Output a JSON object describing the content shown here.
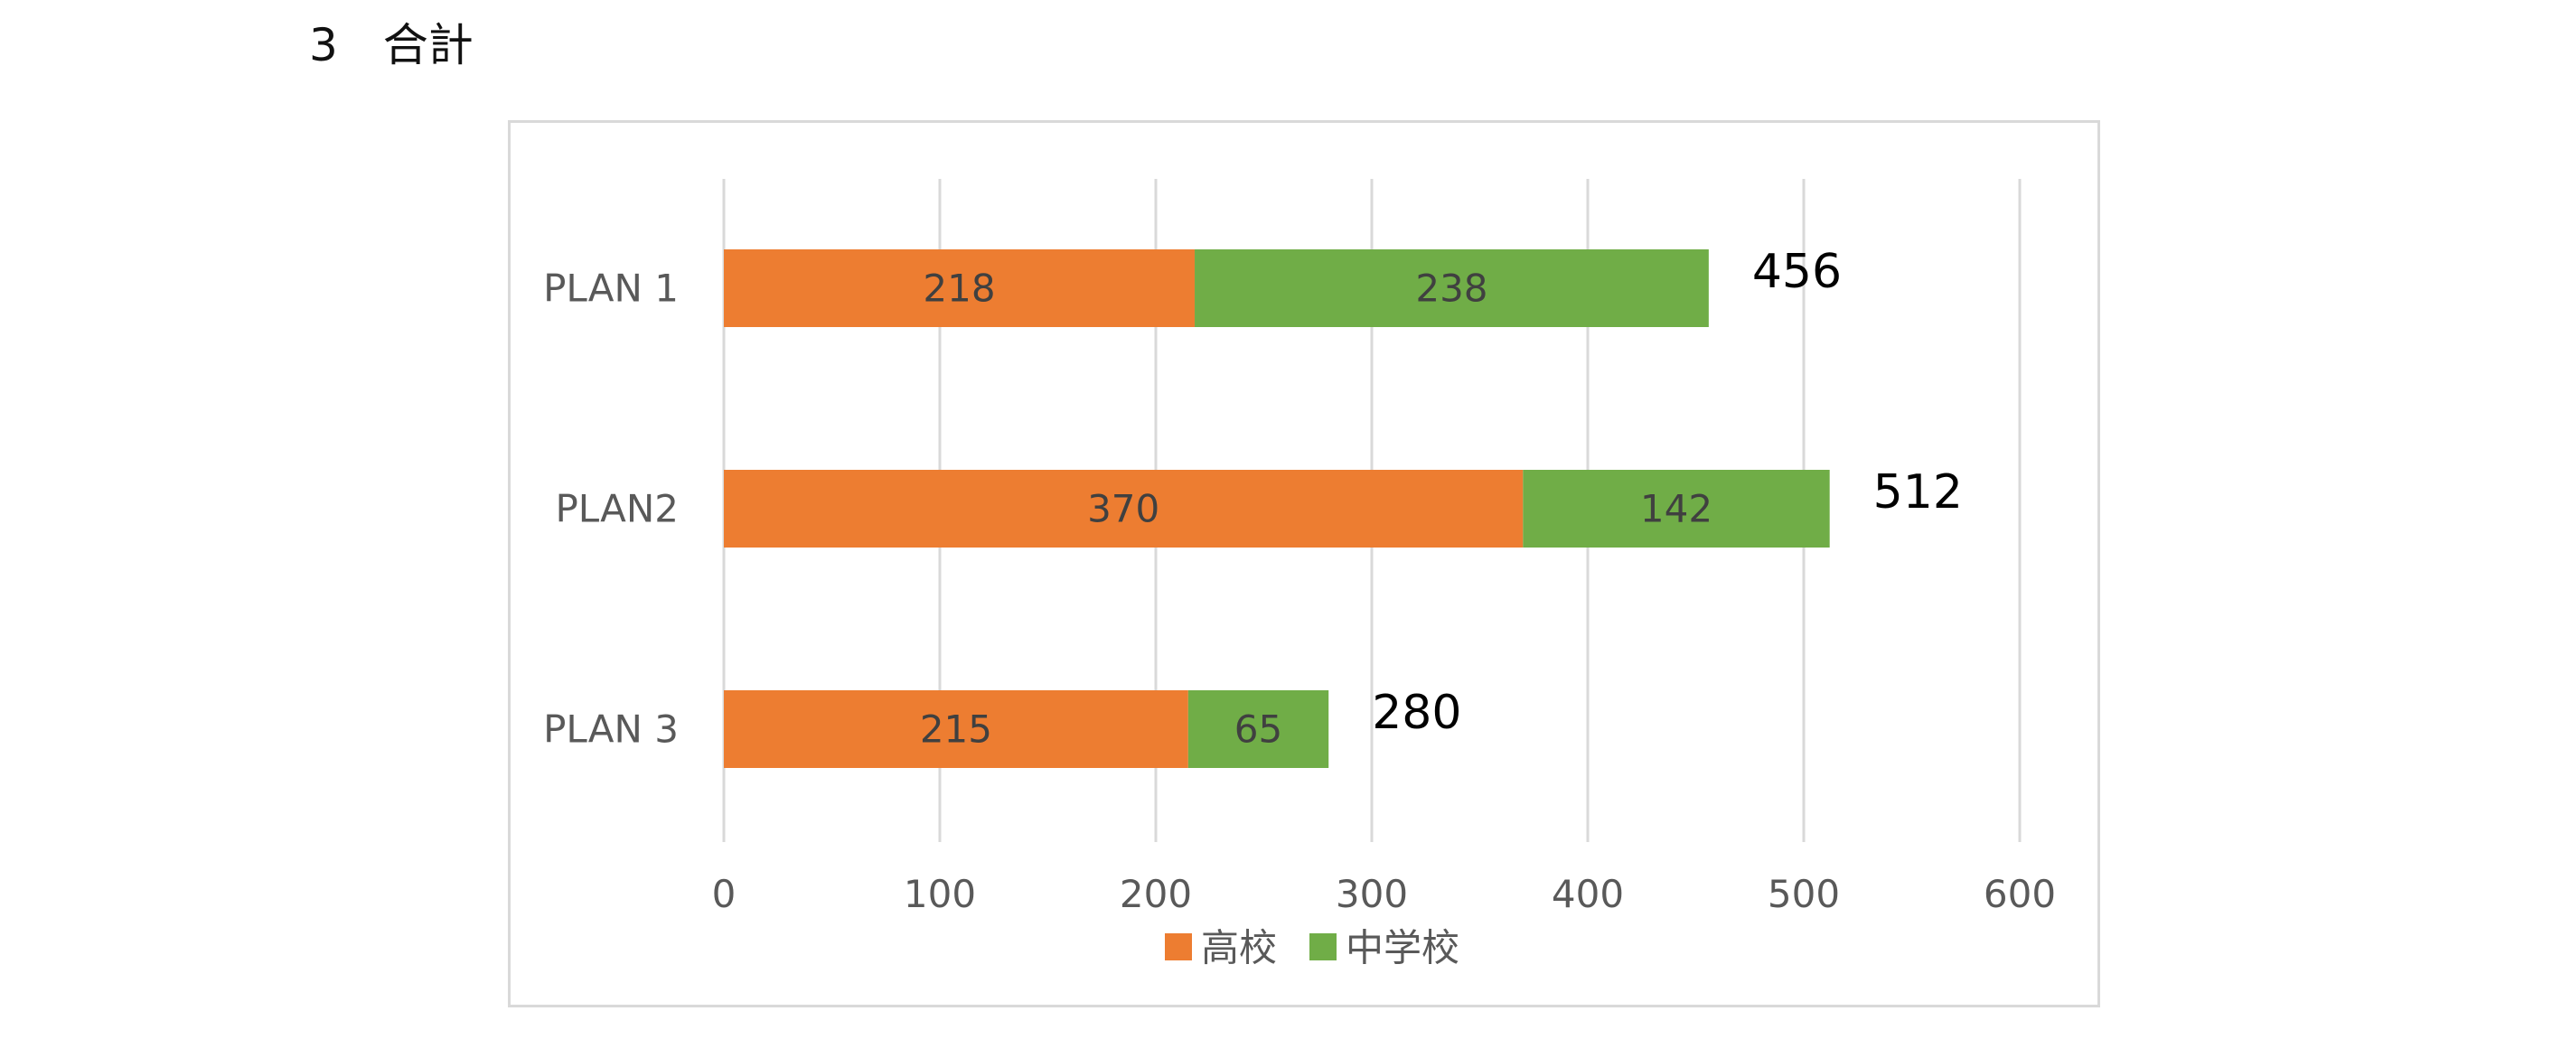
{
  "heading": "3　合計",
  "colors": {
    "high_school": "#ED7D31",
    "junior_high": "#70AD47",
    "gridline": "#d9d9d9",
    "frame": "#d9d9d9"
  },
  "chart_data": {
    "type": "bar",
    "orientation": "horizontal",
    "stacked": true,
    "categories": [
      "PLAN 1",
      "PLAN2",
      "PLAN 3"
    ],
    "series": [
      {
        "name": "高校",
        "color": "#ED7D31",
        "values": [
          218,
          370,
          215
        ]
      },
      {
        "name": "中学校",
        "color": "#70AD47",
        "values": [
          238,
          142,
          65
        ]
      }
    ],
    "totals": [
      456,
      512,
      280
    ],
    "xlim": [
      0,
      600
    ],
    "xticks": [
      0,
      100,
      200,
      300,
      400,
      500,
      600
    ],
    "grid": true,
    "legend_position": "bottom"
  }
}
